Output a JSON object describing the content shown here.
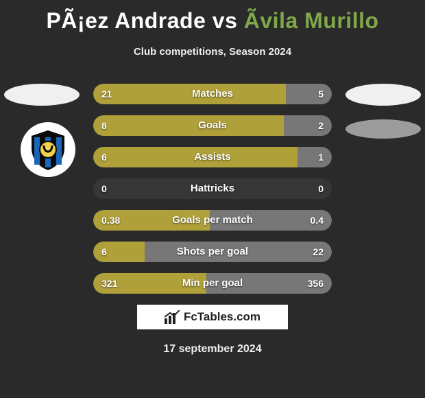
{
  "title": {
    "player1": "PÃ¡ez Andrade",
    "vs": "vs",
    "player2": "Ãvila Murillo",
    "player2_color": "#7fa84a"
  },
  "subtitle": "Club competitions, Season 2024",
  "bar_colors": {
    "left": "#b0a03a",
    "right": "#777777",
    "track": "rgba(255,255,255,0.06)"
  },
  "stats": [
    {
      "label": "Matches",
      "left_val": "21",
      "right_val": "5",
      "left_num": 21,
      "right_num": 5
    },
    {
      "label": "Goals",
      "left_val": "8",
      "right_val": "2",
      "left_num": 8,
      "right_num": 2
    },
    {
      "label": "Assists",
      "left_val": "6",
      "right_val": "1",
      "left_num": 6,
      "right_num": 1
    },
    {
      "label": "Hattricks",
      "left_val": "0",
      "right_val": "0",
      "left_num": 0,
      "right_num": 0
    },
    {
      "label": "Goals per match",
      "left_val": "0.38",
      "right_val": "0.4",
      "left_num": 0.38,
      "right_num": 0.4
    },
    {
      "label": "Shots per goal",
      "left_val": "6",
      "right_val": "22",
      "left_num": 6,
      "right_num": 22
    },
    {
      "label": "Min per goal",
      "left_val": "321",
      "right_val": "356",
      "left_num": 321,
      "right_num": 356
    }
  ],
  "logo_text": "FcTables.com",
  "date": "17 september 2024",
  "background_color": "#2a2a2a"
}
